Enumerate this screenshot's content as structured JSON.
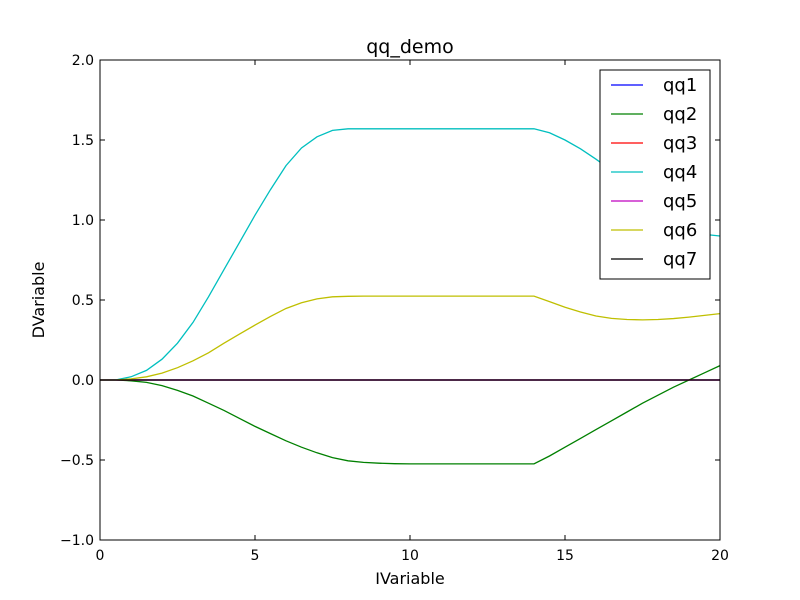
{
  "chart_data": {
    "type": "line",
    "title": "qq_demo",
    "xlabel": "IVariable",
    "ylabel": "DVariable",
    "xlim": [
      0,
      20
    ],
    "ylim": [
      -1.0,
      2.0
    ],
    "xticks": [
      0,
      5,
      10,
      15,
      20
    ],
    "xtick_labels": [
      "0",
      "5",
      "10",
      "15",
      "20"
    ],
    "yticks": [
      -1.0,
      -0.5,
      0.0,
      0.5,
      1.0,
      1.5,
      2.0
    ],
    "ytick_labels": [
      "−1.0",
      "−0.5",
      "0.0",
      "0.5",
      "1.0",
      "1.5",
      "2.0"
    ],
    "grid": false,
    "legend_position": "top-right",
    "x": [
      0,
      0.5,
      1,
      1.5,
      2,
      2.5,
      3,
      3.5,
      4,
      4.5,
      5,
      5.5,
      6,
      6.5,
      7,
      7.5,
      8,
      8.5,
      9,
      9.5,
      10,
      10.5,
      11,
      11.5,
      12,
      12.5,
      13,
      13.5,
      14,
      14.5,
      15,
      15.5,
      16,
      16.5,
      17,
      17.5,
      18,
      18.5,
      19,
      19.5,
      20
    ],
    "series": [
      {
        "name": "qq1",
        "color": "#0000ff",
        "values": [
          0,
          0,
          0,
          0,
          0,
          0,
          0,
          0,
          0,
          0,
          0,
          0,
          0,
          0,
          0,
          0,
          0,
          0,
          0,
          0,
          0,
          0,
          0,
          0,
          0,
          0,
          0,
          0,
          0,
          0,
          0,
          0,
          0,
          0,
          0,
          0,
          0,
          0,
          0,
          0,
          0
        ]
      },
      {
        "name": "qq2",
        "color": "#008000",
        "values": [
          0,
          0,
          -0.005,
          -0.015,
          -0.035,
          -0.065,
          -0.1,
          -0.145,
          -0.19,
          -0.24,
          -0.29,
          -0.335,
          -0.38,
          -0.42,
          -0.455,
          -0.485,
          -0.505,
          -0.515,
          -0.52,
          -0.523,
          -0.524,
          -0.524,
          -0.524,
          -0.524,
          -0.524,
          -0.524,
          -0.524,
          -0.524,
          -0.524,
          -0.475,
          -0.42,
          -0.365,
          -0.31,
          -0.255,
          -0.2,
          -0.145,
          -0.095,
          -0.045,
          0.0,
          0.045,
          0.09
        ]
      },
      {
        "name": "qq3",
        "color": "#ff0000",
        "values": [
          0,
          0,
          0,
          0,
          0,
          0,
          0,
          0,
          0,
          0,
          0,
          0,
          0,
          0,
          0,
          0,
          0,
          0,
          0,
          0,
          0,
          0,
          0,
          0,
          0,
          0,
          0,
          0,
          0,
          0,
          0,
          0,
          0,
          0,
          0,
          0,
          0,
          0,
          0,
          0,
          0
        ]
      },
      {
        "name": "qq4",
        "color": "#00bfbf",
        "values": [
          0,
          0,
          0.02,
          0.06,
          0.13,
          0.23,
          0.36,
          0.52,
          0.69,
          0.86,
          1.03,
          1.19,
          1.34,
          1.45,
          1.52,
          1.56,
          1.57,
          1.57,
          1.57,
          1.57,
          1.57,
          1.57,
          1.57,
          1.57,
          1.57,
          1.57,
          1.57,
          1.57,
          1.57,
          1.545,
          1.5,
          1.445,
          1.38,
          1.31,
          1.24,
          1.165,
          1.09,
          1.015,
          0.94,
          0.91,
          0.9
        ]
      },
      {
        "name": "qq5",
        "color": "#bf00bf",
        "values": [
          0,
          0,
          0,
          0,
          0,
          0,
          0,
          0,
          0,
          0,
          0,
          0,
          0,
          0,
          0,
          0,
          0,
          0,
          0,
          0,
          0,
          0,
          0,
          0,
          0,
          0,
          0,
          0,
          0,
          0,
          0,
          0,
          0,
          0,
          0,
          0,
          0,
          0,
          0,
          0,
          0
        ]
      },
      {
        "name": "qq6",
        "color": "#bfbf00",
        "values": [
          0,
          0,
          0.007,
          0.02,
          0.043,
          0.077,
          0.12,
          0.17,
          0.23,
          0.287,
          0.343,
          0.397,
          0.447,
          0.483,
          0.507,
          0.52,
          0.523,
          0.524,
          0.524,
          0.524,
          0.524,
          0.524,
          0.524,
          0.524,
          0.524,
          0.524,
          0.524,
          0.524,
          0.524,
          0.49,
          0.455,
          0.425,
          0.4,
          0.385,
          0.378,
          0.376,
          0.378,
          0.384,
          0.393,
          0.404,
          0.415
        ]
      },
      {
        "name": "qq7",
        "color": "#000000",
        "values": [
          0,
          0,
          0,
          0,
          0,
          0,
          0,
          0,
          0,
          0,
          0,
          0,
          0,
          0,
          0,
          0,
          0,
          0,
          0,
          0,
          0,
          0,
          0,
          0,
          0,
          0,
          0,
          0,
          0,
          0,
          0,
          0,
          0,
          0,
          0,
          0,
          0,
          0,
          0,
          0,
          0
        ]
      }
    ]
  }
}
